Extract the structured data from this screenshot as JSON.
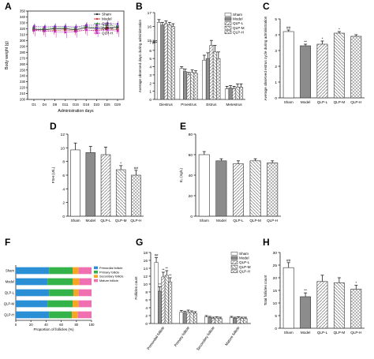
{
  "colors": {
    "sham": "#ffffff",
    "model": "#8c8c8c",
    "qlp_pattern": "#9a9a9a",
    "line_sham": "#1a1a1a",
    "line_model": "#cc2222",
    "line_qlp_l": "#2e7d32",
    "line_qlp_m": "#7b2bbf",
    "line_qlp_h": "#cc22cc",
    "f_primordial": "#2b8fd6",
    "f_primary": "#34b34a",
    "f_secondary": "#f5a623",
    "f_mature": "#f06fb0"
  },
  "chart_data": [
    {
      "panel": "A",
      "type": "line",
      "ylabel": "Body weight (g)",
      "xlabel": "Administration days",
      "categories": [
        "D1",
        "D4",
        "D8",
        "D11",
        "D15",
        "D18",
        "D22",
        "D25",
        "D29"
      ],
      "ylim": [
        200,
        350
      ],
      "yticks": [
        200,
        210,
        220,
        230,
        240,
        250,
        260,
        270,
        280,
        290,
        300,
        310,
        320,
        330,
        340,
        350
      ],
      "ytick_labels": [
        "200",
        "210",
        "220",
        "230",
        "240",
        "250",
        "260",
        "270",
        "280",
        "290",
        "300",
        "310",
        "320",
        "330",
        "340",
        "350"
      ],
      "legend": [
        "Sham",
        "Model",
        "QLP-L",
        "QLP-M",
        "QLP-H"
      ],
      "series": [
        {
          "name": "Sham",
          "values": [
            319,
            318,
            320,
            320,
            318,
            322,
            320,
            322,
            322
          ],
          "err": 4
        },
        {
          "name": "Model",
          "values": [
            318,
            316,
            317,
            318,
            316,
            318,
            317,
            320,
            318
          ],
          "err": 7
        },
        {
          "name": "QLP-L",
          "values": [
            321,
            320,
            322,
            322,
            321,
            324,
            322,
            326,
            324
          ],
          "err": 6
        },
        {
          "name": "QLP-M",
          "values": [
            324,
            323,
            324,
            324,
            323,
            326,
            326,
            329,
            328
          ],
          "err": 5
        },
        {
          "name": "QLP-H",
          "values": [
            317,
            316,
            315,
            314,
            315,
            318,
            316,
            318,
            316
          ],
          "err": 10
        }
      ]
    },
    {
      "panel": "B",
      "type": "bar",
      "ylabel": "Average observed days during administration",
      "categories": [
        "Diestrus",
        "Proestrus",
        "Estrus",
        "Metestrus"
      ],
      "ylim": [
        0,
        17
      ],
      "yticks": [
        0,
        1,
        2,
        3,
        4,
        5,
        6,
        7,
        15,
        16,
        17
      ],
      "ytick_labels": [
        "0",
        "1",
        "2",
        "3",
        "4",
        "5",
        "6",
        "7",
        "15",
        "16",
        "17"
      ],
      "legend": [
        "Sham",
        "Model",
        "QLP-L",
        "QLP-M",
        "QLP-H"
      ],
      "series": [
        {
          "name": "Sham",
          "values": [
            16.3,
            3.8,
            4.8,
            1.3
          ],
          "err": [
            0.2,
            0.2,
            0.6,
            0.3
          ]
        },
        {
          "name": "Model",
          "values": [
            16.1,
            3.4,
            5.0,
            1.4
          ],
          "err": [
            0.2,
            0.3,
            0.7,
            0.3
          ]
        },
        {
          "name": "QLP-L",
          "values": [
            16.2,
            3.0,
            6.6,
            1.3
          ],
          "err": [
            0.2,
            0.3,
            0.8,
            0.3
          ]
        },
        {
          "name": "QLP-M",
          "values": [
            16.1,
            3.3,
            5.8,
            1.5
          ],
          "err": [
            0.2,
            0.3,
            0.8,
            0.4
          ]
        },
        {
          "name": "QLP-H",
          "values": [
            16.0,
            3.2,
            5.0,
            1.5
          ],
          "err": [
            0.2,
            0.3,
            0.8,
            0.4
          ]
        }
      ]
    },
    {
      "panel": "C",
      "type": "bar",
      "ylabel": "Average observed estrus cycle during administration",
      "categories": [
        "Sham",
        "Model",
        "QLP-L",
        "QLP-M",
        "QLP-H"
      ],
      "ylim": [
        0,
        5
      ],
      "yticks": [
        0,
        1,
        2,
        3,
        4,
        5
      ],
      "ytick_labels": [
        "0",
        "1",
        "2",
        "3",
        "4",
        "5"
      ],
      "values": [
        4.2,
        3.3,
        3.4,
        4.1,
        3.9
      ],
      "err": [
        0.1,
        0.1,
        0.2,
        0.1,
        0.1
      ],
      "annotations": [
        "##",
        "**",
        "*",
        "*",
        ""
      ]
    },
    {
      "panel": "D",
      "type": "bar",
      "ylabel": "FSH (U/L)",
      "categories": [
        "Sham",
        "Model",
        "QLP-L",
        "QLP-M",
        "QLP-H"
      ],
      "ylim": [
        0,
        12
      ],
      "yticks": [
        0,
        2,
        4,
        6,
        8,
        10,
        12
      ],
      "ytick_labels": [
        "0",
        "2",
        "4",
        "6",
        "8",
        "10",
        "12"
      ],
      "values": [
        9.7,
        9.3,
        9.0,
        6.8,
        6.0
      ],
      "err": [
        1.0,
        0.9,
        1.1,
        0.6,
        0.7
      ],
      "annotations": [
        "",
        "",
        "",
        "*",
        "##"
      ]
    },
    {
      "panel": "E",
      "type": "bar",
      "ylabel": "E₂ (ng/L)",
      "categories": [
        "Sham",
        "Model",
        "QLP-L",
        "QLP-M",
        "QLP-H"
      ],
      "ylim": [
        0,
        80
      ],
      "yticks": [
        0,
        20,
        40,
        60,
        80
      ],
      "ytick_labels": [
        "0",
        "20",
        "40",
        "60",
        "80"
      ],
      "values": [
        60,
        54,
        51,
        54,
        52
      ],
      "err": [
        3,
        2,
        3,
        2,
        2
      ]
    },
    {
      "panel": "F",
      "type": "bar",
      "orientation": "horizontal-stacked",
      "xlabel": "Proportion of follicles (%)",
      "categories": [
        "Sham",
        "Model",
        "QLP-L",
        "QLP-M",
        "QLP-H"
      ],
      "xlim": [
        0,
        100
      ],
      "xticks": [
        0,
        20,
        40,
        60,
        80,
        100
      ],
      "xtick_labels": [
        "0",
        "20",
        "40",
        "60",
        "80",
        "100"
      ],
      "legend": [
        "Primordial follicle",
        "Primary follicle",
        "Secondary follicle",
        "Mature follicle"
      ],
      "series": [
        {
          "name": "Primordial follicle",
          "values": [
            44,
            42,
            44,
            42,
            44
          ]
        },
        {
          "name": "Primary follicle",
          "values": [
            31,
            33,
            32,
            33,
            30
          ]
        },
        {
          "name": "Secondary follicle",
          "values": [
            8,
            9,
            7,
            8,
            8
          ]
        },
        {
          "name": "Mature follicle",
          "values": [
            17,
            16,
            17,
            17,
            18
          ]
        }
      ]
    },
    {
      "panel": "G",
      "type": "bar",
      "ylabel": "Follicles count",
      "categories": [
        "Primordial follicle",
        "Primary follicle",
        "Secondary follicle",
        "Mature follicle"
      ],
      "ylim": [
        0,
        18
      ],
      "yticks": [
        0,
        2,
        4,
        6,
        8,
        10,
        12,
        14,
        16,
        18
      ],
      "ytick_labels": [
        "0",
        "2",
        "4",
        "6",
        "8",
        "10",
        "12",
        "14",
        "16",
        "18"
      ],
      "legend": [
        "Sham",
        "Model",
        "QLP-L",
        "QLP-M",
        "QLP-H"
      ],
      "series": [
        {
          "name": "Sham",
          "values": [
            15.5,
            2.9,
            1.7,
            1.5
          ],
          "err": [
            1.2,
            0.4,
            0.3,
            0.3
          ]
        },
        {
          "name": "Model",
          "values": [
            8.2,
            2.7,
            1.5,
            1.3
          ],
          "err": [
            1.1,
            0.4,
            0.3,
            0.3
          ]
        },
        {
          "name": "QLP-L",
          "values": [
            11.8,
            2.9,
            1.3,
            1.4
          ],
          "err": [
            1.2,
            0.5,
            0.3,
            0.3
          ]
        },
        {
          "name": "QLP-M",
          "values": [
            12.2,
            2.8,
            1.4,
            1.3
          ],
          "err": [
            1.2,
            0.4,
            0.3,
            0.3
          ]
        },
        {
          "name": "QLP-H",
          "values": [
            10.5,
            2.6,
            1.3,
            1.3
          ],
          "err": [
            1.1,
            0.4,
            0.3,
            0.3
          ]
        }
      ],
      "annotations": [
        [
          "##",
          "**",
          "**",
          "**",
          "**"
        ],
        [
          "",
          "",
          "",
          "",
          ""
        ],
        [
          "",
          "",
          "",
          "",
          ""
        ],
        [
          "",
          "",
          "",
          "",
          ""
        ]
      ]
    },
    {
      "panel": "H",
      "type": "bar",
      "ylabel": "Total follicles count",
      "categories": [
        "Sham",
        "Model",
        "QLP-L",
        "QLP-M",
        "QLP-H"
      ],
      "ylim": [
        0,
        30
      ],
      "yticks": [
        0,
        5,
        10,
        15,
        20,
        25,
        30
      ],
      "ytick_labels": [
        "0",
        "5",
        "10",
        "15",
        "20",
        "25",
        "30"
      ],
      "values": [
        24,
        12.5,
        18.5,
        18,
        15.5
      ],
      "err": [
        2.0,
        1.5,
        2.5,
        2.0,
        1.5
      ],
      "annotations": [
        "##",
        "**",
        "",
        "",
        "*"
      ]
    }
  ]
}
